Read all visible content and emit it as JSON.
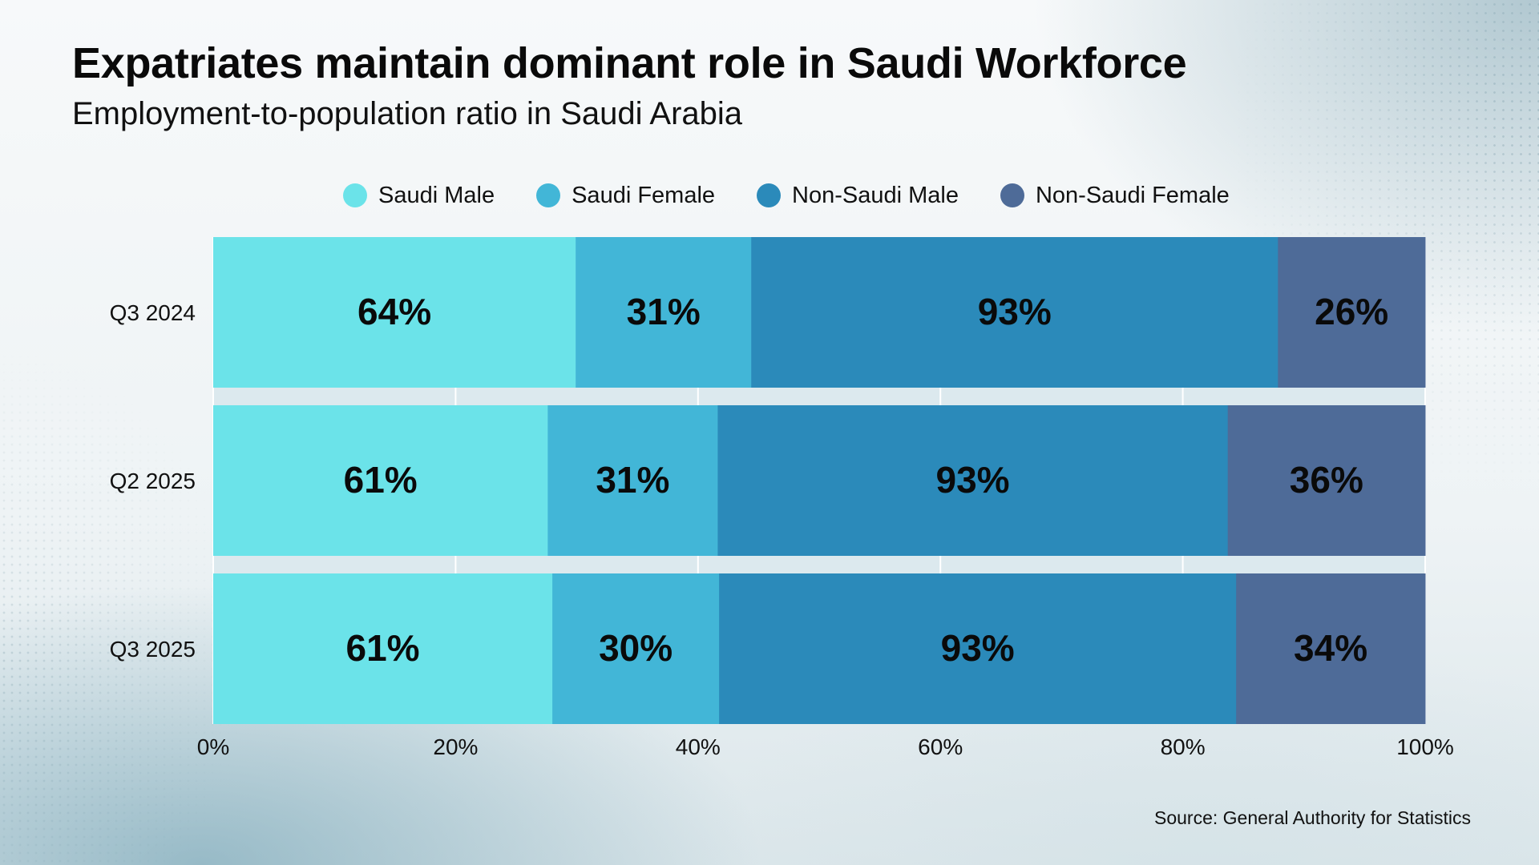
{
  "header": {
    "title": "Expatriates maintain dominant role in Saudi Workforce",
    "subtitle": "Employment-to-population ratio in Saudi Arabia"
  },
  "footer": {
    "source": "Source: General Authority for Statistics"
  },
  "chart_data": {
    "type": "bar",
    "orientation": "horizontal",
    "stacked": true,
    "normalized": true,
    "title": "Expatriates maintain dominant role in Saudi Workforce",
    "subtitle": "Employment-to-population ratio in Saudi Arabia",
    "categories": [
      "Q3 2024",
      "Q2 2025",
      "Q3 2025"
    ],
    "series": [
      {
        "name": "Saudi Male",
        "color": "#6be3e9",
        "values": [
          64,
          61,
          61
        ],
        "labels": [
          "64%",
          "61%",
          "61%"
        ]
      },
      {
        "name": "Saudi Female",
        "color": "#42b6d7",
        "values": [
          31,
          31,
          30
        ],
        "labels": [
          "31%",
          "31%",
          "30%"
        ]
      },
      {
        "name": "Non-Saudi Male",
        "color": "#2b8aba",
        "values": [
          93,
          93,
          93
        ],
        "labels": [
          "93%",
          "93%",
          "93%"
        ]
      },
      {
        "name": "Non-Saudi Female",
        "color": "#4e6b98",
        "values": [
          26,
          36,
          34
        ],
        "labels": [
          "26%",
          "36%",
          "34%"
        ]
      }
    ],
    "xlim": [
      0,
      100
    ],
    "xticks": [
      "0%",
      "20%",
      "40%",
      "60%",
      "80%",
      "100%"
    ],
    "legend": "top",
    "grid": true
  }
}
